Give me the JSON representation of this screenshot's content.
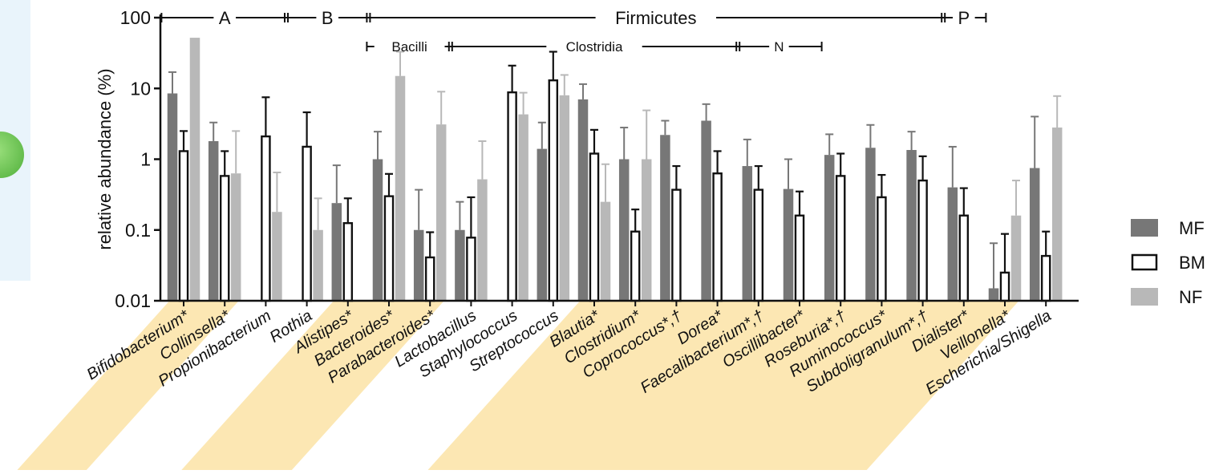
{
  "chart_data": {
    "type": "bar",
    "ylabel": "relative abundance (%)",
    "yscale": "log",
    "ylim": [
      0.01,
      100
    ],
    "yticks": [
      "0.01",
      "0.1",
      "1",
      "10",
      "100"
    ],
    "series": [
      {
        "name": "MF",
        "color": "#777777",
        "fill": "solid-dark",
        "values": [
          8.5,
          1.8,
          null,
          null,
          0.24,
          1.0,
          0.1,
          0.1,
          null,
          1.4,
          7.0,
          1.0,
          2.2,
          3.5,
          0.8,
          0.38,
          1.15,
          1.45,
          1.35,
          0.4,
          0.015,
          0.75
        ],
        "errors": [
          17,
          3.3,
          null,
          null,
          0.82,
          2.45,
          0.37,
          0.25,
          null,
          3.3,
          11.5,
          2.8,
          3.5,
          6.0,
          1.9,
          1.0,
          2.25,
          3.05,
          2.45,
          1.5,
          0.065,
          4.0
        ]
      },
      {
        "name": "BM",
        "color": "#ffffff",
        "fill": "outline",
        "values": [
          1.3,
          0.58,
          2.1,
          1.5,
          0.125,
          0.3,
          0.041,
          0.078,
          8.8,
          13,
          1.2,
          0.095,
          0.37,
          0.63,
          0.37,
          0.16,
          0.58,
          0.29,
          0.5,
          0.16,
          0.025,
          0.043
        ],
        "errors": [
          2.5,
          1.3,
          7.5,
          4.6,
          0.28,
          0.62,
          0.093,
          0.29,
          21,
          33,
          2.6,
          0.195,
          0.8,
          1.3,
          0.8,
          0.35,
          1.2,
          0.6,
          1.1,
          0.39,
          0.088,
          0.095
        ]
      },
      {
        "name": "NF",
        "color": "#b8b8b8",
        "fill": "solid-light",
        "values": [
          52,
          0.63,
          0.18,
          0.1,
          null,
          15,
          3.1,
          0.52,
          4.3,
          8.0,
          0.25,
          1.0,
          null,
          null,
          null,
          null,
          null,
          null,
          null,
          null,
          0.16,
          2.8
        ],
        "errors": [
          null,
          2.5,
          0.65,
          0.28,
          null,
          33,
          9.0,
          1.8,
          8.7,
          15.5,
          0.85,
          4.9,
          null,
          null,
          null,
          null,
          null,
          null,
          null,
          null,
          0.5,
          7.8
        ]
      }
    ],
    "categories": [
      "Bifidobacterium*",
      "Collinsella*",
      "Propionibacterium",
      "Rothia",
      "Alistipes*",
      "Bacteroides*",
      "Parabacteroides*",
      "Lactobacillus",
      "Staphylococcus",
      "Streptococcus",
      "Blautia*",
      "Clostridium*",
      "Coprococcus*,†",
      "Dorea*",
      "Faecalibacterium*,†",
      "Oscillibacter*",
      "Roseburia*,†",
      "Ruminococcus*",
      "Subdoligranulum*,†",
      "Dialister*",
      "Veillonella*",
      "Escherichia/Shigella"
    ],
    "highlighted": [
      true,
      true,
      false,
      false,
      true,
      true,
      true,
      false,
      false,
      false,
      true,
      true,
      true,
      true,
      true,
      true,
      true,
      true,
      true,
      true,
      true,
      false
    ],
    "highlight_color": "#fbe3a6",
    "legend": {
      "placement": "right",
      "entries": [
        "MF",
        "BM",
        "NF"
      ]
    },
    "grid": false,
    "top_brackets": [
      {
        "label": "A",
        "from": 0,
        "to": 2
      },
      {
        "label": "B",
        "from": 3,
        "to": 4
      },
      {
        "label": "Firmicutes",
        "from": 5,
        "to": 18
      },
      {
        "label": "P",
        "from": 19,
        "to": 19
      }
    ],
    "sub_brackets": [
      {
        "label": "Bacilli",
        "from": 5,
        "to": 6
      },
      {
        "label": "Clostridia",
        "from": 7,
        "to": 13
      },
      {
        "label": "N",
        "from": 14,
        "to": 15
      }
    ]
  }
}
